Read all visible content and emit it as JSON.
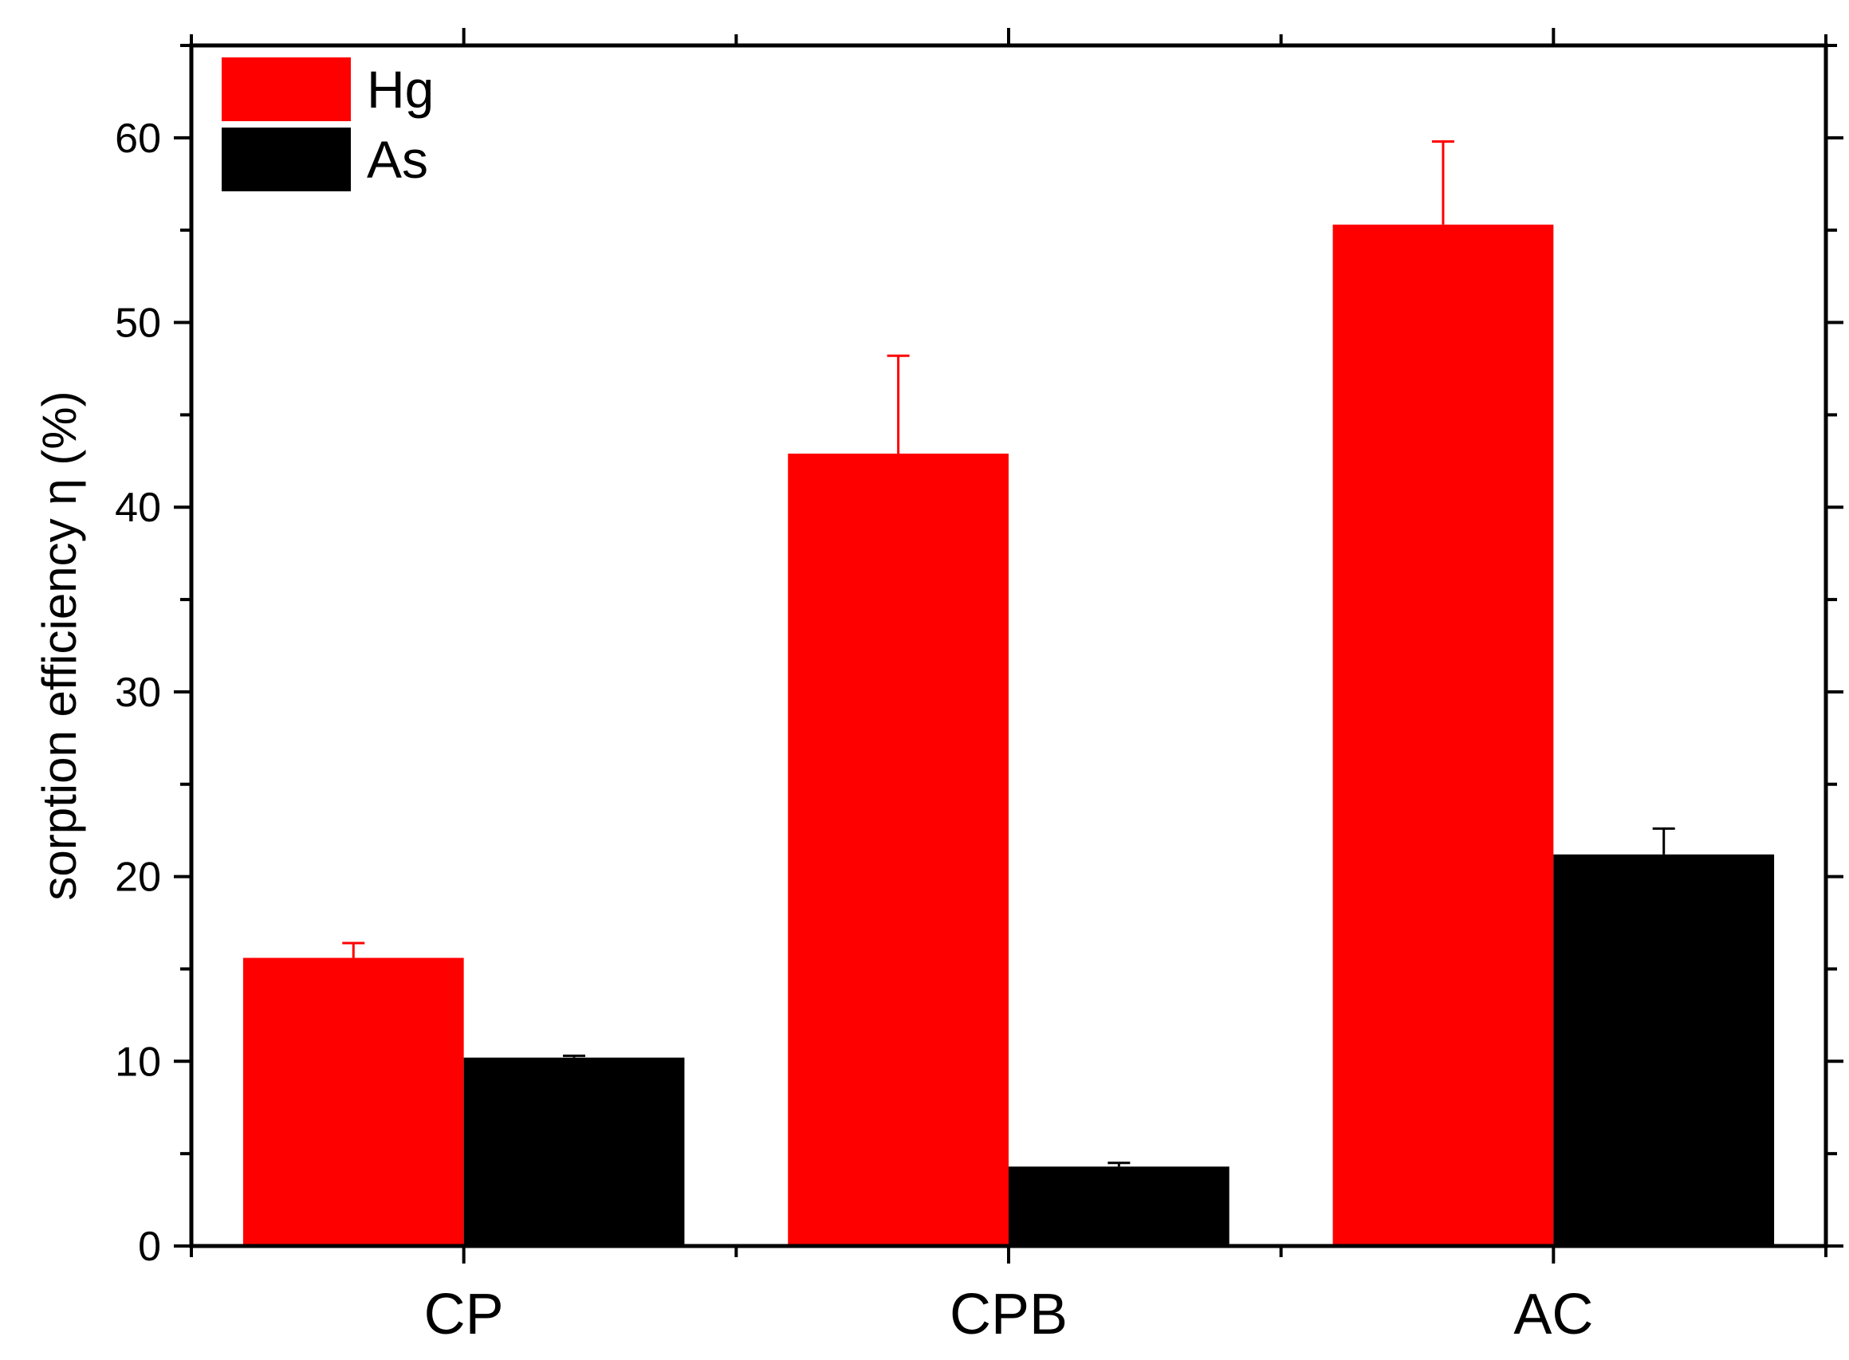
{
  "chart_data": {
    "type": "bar",
    "categories": [
      "CP",
      "CPB",
      "AC"
    ],
    "series": [
      {
        "name": "Hg",
        "color": "#ff0000",
        "values": [
          15.6,
          42.9,
          55.3
        ],
        "errors": [
          0.8,
          5.3,
          4.5
        ]
      },
      {
        "name": "As",
        "color": "#000000",
        "values": [
          10.2,
          4.3,
          21.2
        ],
        "errors": [
          0.1,
          0.2,
          1.4
        ]
      }
    ],
    "ylabel": "sorption efficiency η (%)",
    "xlabel": "",
    "ylim": [
      0,
      65
    ],
    "yticks": [
      0,
      10,
      20,
      30,
      40,
      50,
      60
    ],
    "grid": false,
    "legend_position": "top-left"
  }
}
